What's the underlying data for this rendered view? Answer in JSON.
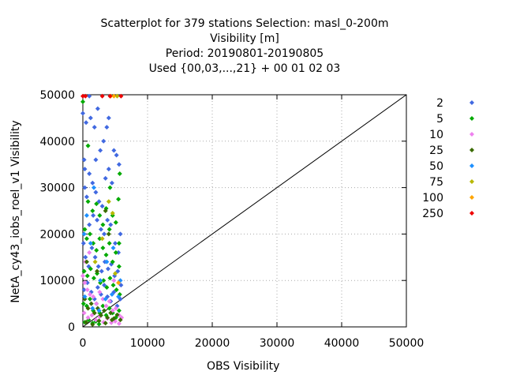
{
  "title_lines": [
    "Scatterplot for  379 stations Selection: masl_0-200m",
    "Visibility [m]",
    "Period: 20190801-20190805",
    "Used {00,03,...,21} + 00 01 02 03"
  ],
  "chart_data": {
    "type": "scatter",
    "title": "Scatterplot for  379 stations Selection: masl_0-200m",
    "subtitle": [
      "Visibility [m]",
      "Period: 20190801-20190805",
      "Used {00,03,...,21} + 00 01 02 03"
    ],
    "xlabel": "OBS Visibility",
    "ylabel": "NetA_cy43_iobs_roel_v1 Visibility",
    "xlim": [
      0,
      50000
    ],
    "ylim": [
      0,
      50000
    ],
    "xticks": [
      0,
      10000,
      20000,
      30000,
      40000,
      50000
    ],
    "yticks": [
      0,
      10000,
      20000,
      30000,
      40000,
      50000
    ],
    "grid": true,
    "legend_position": "right",
    "diagonal_line": [
      [
        0,
        0
      ],
      [
        50000,
        50000
      ]
    ],
    "series": [
      {
        "name": "2",
        "color": "#4169e1",
        "points": [
          [
            200,
            36000
          ],
          [
            300,
            34000
          ],
          [
            0,
            46000
          ],
          [
            500,
            44000
          ],
          [
            1200,
            45000
          ],
          [
            1800,
            43000
          ],
          [
            2300,
            47000
          ],
          [
            300,
            30000
          ],
          [
            600,
            28000
          ],
          [
            1000,
            33000
          ],
          [
            1500,
            31000
          ],
          [
            2000,
            29000
          ],
          [
            2500,
            27000
          ],
          [
            3000,
            26000
          ],
          [
            3500,
            32000
          ],
          [
            4000,
            34000
          ],
          [
            4500,
            31000
          ],
          [
            4800,
            38000
          ],
          [
            5200,
            37000
          ],
          [
            5600,
            35000
          ],
          [
            3200,
            40000
          ],
          [
            3700,
            43000
          ],
          [
            2700,
            38000
          ],
          [
            2000,
            36000
          ],
          [
            1000,
            22000
          ],
          [
            1600,
            24000
          ],
          [
            2200,
            23000
          ],
          [
            2800,
            21000
          ],
          [
            3300,
            20000
          ],
          [
            3800,
            23000
          ],
          [
            4300,
            22000
          ],
          [
            5000,
            18000
          ],
          [
            5500,
            16000
          ],
          [
            5800,
            20000
          ],
          [
            100,
            18000
          ],
          [
            400,
            15000
          ],
          [
            900,
            13000
          ],
          [
            1400,
            17000
          ],
          [
            1900,
            15000
          ],
          [
            2400,
            13000
          ],
          [
            2900,
            12000
          ],
          [
            3400,
            14000
          ],
          [
            3900,
            12500
          ],
          [
            4400,
            13500
          ],
          [
            4900,
            11000
          ],
          [
            5400,
            12000
          ],
          [
            5900,
            9000
          ],
          [
            200,
            8000
          ],
          [
            700,
            9500
          ],
          [
            1300,
            7500
          ],
          [
            1800,
            6000
          ],
          [
            2300,
            8500
          ],
          [
            2800,
            7000
          ],
          [
            3300,
            9000
          ],
          [
            3800,
            6500
          ],
          [
            4300,
            5500
          ],
          [
            4800,
            7500
          ],
          [
            5300,
            4500
          ],
          [
            5800,
            6000
          ],
          [
            1000,
            49700
          ],
          [
            4000,
            45000
          ]
        ]
      },
      {
        "name": "5",
        "color": "#00aa00",
        "points": [
          [
            0,
            48500
          ],
          [
            800,
            27000
          ],
          [
            1500,
            25000
          ],
          [
            2100,
            26500
          ],
          [
            2600,
            24000
          ],
          [
            3100,
            22000
          ],
          [
            3600,
            25500
          ],
          [
            4100,
            21000
          ],
          [
            4600,
            24000
          ],
          [
            5100,
            22500
          ],
          [
            5600,
            18000
          ],
          [
            300,
            21000
          ],
          [
            600,
            19000
          ],
          [
            1100,
            20000
          ],
          [
            1600,
            18000
          ],
          [
            2100,
            16500
          ],
          [
            2600,
            19000
          ],
          [
            3100,
            17000
          ],
          [
            3600,
            15500
          ],
          [
            4100,
            18000
          ],
          [
            4600,
            14000
          ],
          [
            5100,
            16000
          ],
          [
            5600,
            13000
          ],
          [
            200,
            12000
          ],
          [
            700,
            11000
          ],
          [
            1200,
            12500
          ],
          [
            1700,
            10500
          ],
          [
            2200,
            11500
          ],
          [
            2700,
            9500
          ],
          [
            3200,
            10000
          ],
          [
            3700,
            8500
          ],
          [
            4200,
            10500
          ],
          [
            4700,
            9000
          ],
          [
            5200,
            8000
          ],
          [
            5700,
            7000
          ],
          [
            100,
            5000
          ],
          [
            600,
            4500
          ],
          [
            1100,
            6000
          ],
          [
            1600,
            3500
          ],
          [
            2100,
            5000
          ],
          [
            2600,
            3000
          ],
          [
            3100,
            4500
          ],
          [
            3600,
            2500
          ],
          [
            4100,
            4000
          ],
          [
            4600,
            3000
          ],
          [
            5100,
            2000
          ],
          [
            5600,
            3500
          ],
          [
            300,
            1000
          ],
          [
            900,
            1500
          ],
          [
            1500,
            800
          ],
          [
            2000,
            1200
          ],
          [
            2500,
            600
          ],
          [
            5700,
            33000
          ],
          [
            5500,
            27500
          ],
          [
            800,
            39000
          ],
          [
            4200,
            30000
          ]
        ]
      },
      {
        "name": "10",
        "color": "#ee82ee",
        "points": [
          [
            0,
            11000
          ],
          [
            300,
            9500
          ],
          [
            700,
            8000
          ],
          [
            1100,
            7000
          ],
          [
            1600,
            6500
          ],
          [
            2100,
            5000
          ],
          [
            2600,
            7500
          ],
          [
            3100,
            6000
          ],
          [
            3600,
            4500
          ],
          [
            4100,
            5500
          ],
          [
            4600,
            3500
          ],
          [
            5100,
            4000
          ],
          [
            5600,
            2500
          ],
          [
            200,
            3000
          ],
          [
            800,
            2000
          ],
          [
            1400,
            2500
          ],
          [
            2000,
            1500
          ],
          [
            2600,
            2200
          ],
          [
            3200,
            1000
          ],
          [
            3800,
            1800
          ],
          [
            4400,
            900
          ],
          [
            5000,
            1200
          ],
          [
            5600,
            700
          ],
          [
            6000,
            2000
          ],
          [
            400,
            14000
          ],
          [
            1000,
            16000
          ],
          [
            4800,
            10000
          ]
        ]
      },
      {
        "name": "25",
        "color": "#3a6b00",
        "points": [
          [
            300,
            6000
          ],
          [
            800,
            4000
          ],
          [
            1300,
            5000
          ],
          [
            1800,
            3000
          ],
          [
            2300,
            4000
          ],
          [
            2800,
            2500
          ],
          [
            3300,
            3500
          ],
          [
            3800,
            2000
          ],
          [
            4300,
            3000
          ],
          [
            4800,
            1800
          ],
          [
            5300,
            2600
          ],
          [
            5800,
            1500
          ],
          [
            500,
            1000
          ],
          [
            1500,
            500
          ],
          [
            2500,
            1300
          ],
          [
            3500,
            800
          ],
          [
            4500,
            1500
          ],
          [
            600,
            14000
          ],
          [
            2200,
            12000
          ],
          [
            4000,
            20000
          ],
          [
            3500,
            25000
          ]
        ]
      },
      {
        "name": "50",
        "color": "#1e90ff",
        "points": [
          [
            200,
            20000
          ],
          [
            600,
            24000
          ],
          [
            1200,
            18000
          ],
          [
            1700,
            30000
          ],
          [
            2700,
            10000
          ],
          [
            3700,
            14000
          ],
          [
            4700,
            17000
          ],
          [
            5800,
            10000
          ],
          [
            300,
            6500
          ],
          [
            1500,
            4000
          ],
          [
            2500,
            3500
          ],
          [
            3500,
            6000
          ],
          [
            4500,
            7000
          ],
          [
            5500,
            6500
          ]
        ]
      },
      {
        "name": "75",
        "color": "#b8b800",
        "points": [
          [
            4000,
            27000
          ],
          [
            4600,
            24500
          ],
          [
            3000,
            19000
          ],
          [
            5000,
            11500
          ],
          [
            1900,
            14000
          ],
          [
            5300,
            49700
          ]
        ]
      },
      {
        "name": "100",
        "color": "#ffa500",
        "points": [
          [
            4300,
            49700
          ],
          [
            4800,
            49700
          ],
          [
            5500,
            9500
          ]
        ]
      },
      {
        "name": "250",
        "color": "#ee0000",
        "points": [
          [
            0,
            49700
          ],
          [
            400,
            49700
          ],
          [
            3000,
            49700
          ],
          [
            4200,
            49700
          ],
          [
            5900,
            49700
          ]
        ]
      }
    ]
  }
}
